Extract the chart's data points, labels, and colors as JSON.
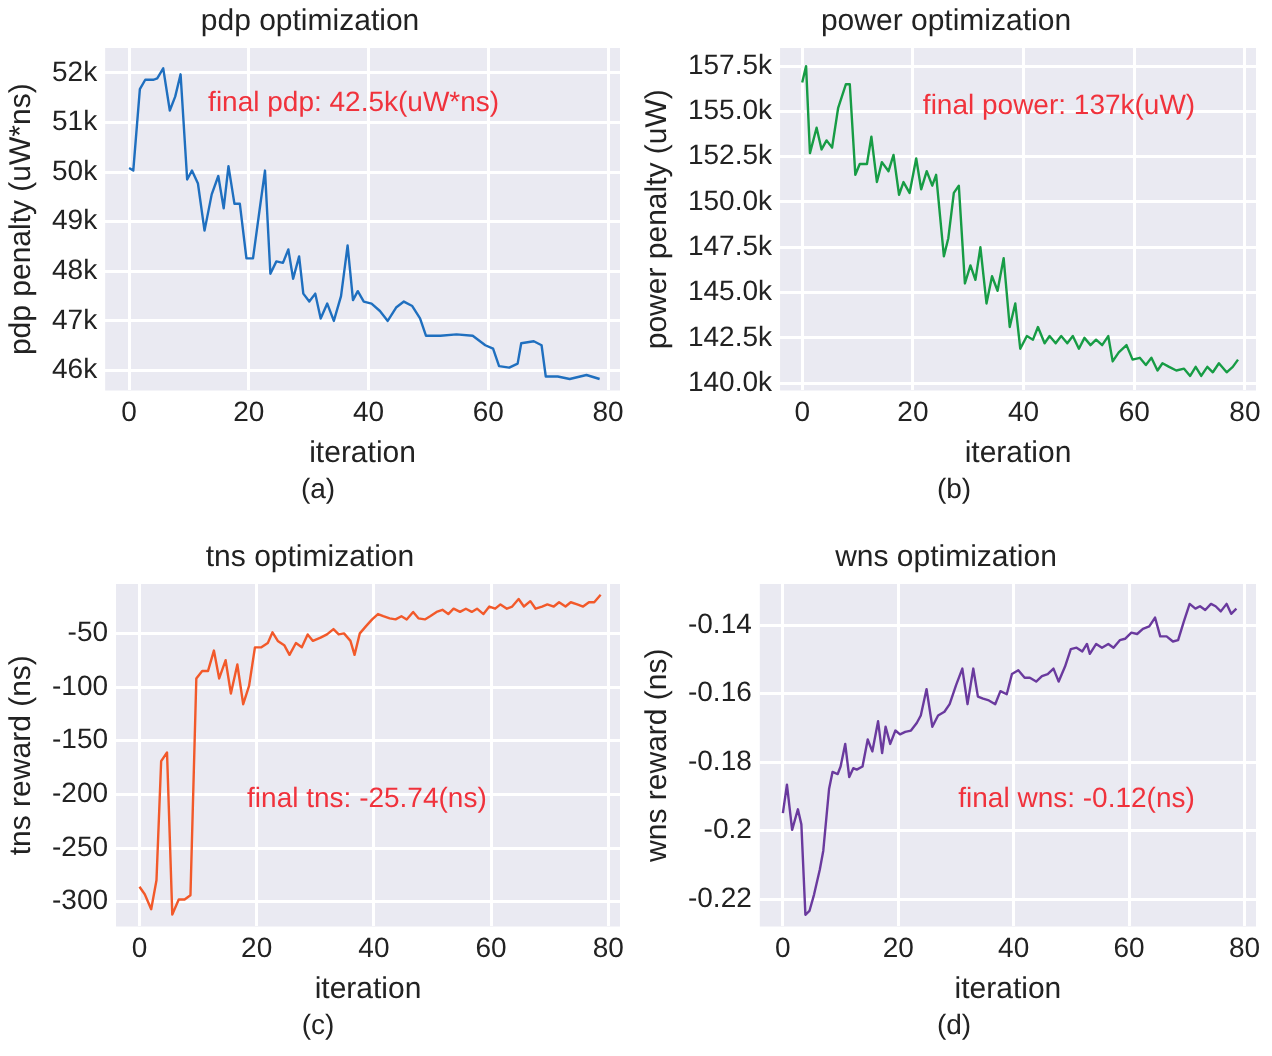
{
  "chart_data": [
    {
      "type": "line",
      "title": "pdp optimization",
      "xlabel": "iteration",
      "ylabel": "pdp penalty (uW*ns)",
      "color": "#1f6fbf",
      "grid": true,
      "xlim": [
        -4,
        82
      ],
      "xticks": [
        0,
        20,
        40,
        60,
        80
      ],
      "ylim": [
        45600,
        52500
      ],
      "yticks": [
        {
          "value": 46000,
          "label": "46k"
        },
        {
          "value": 47000,
          "label": "47k"
        },
        {
          "value": 48000,
          "label": "48k"
        },
        {
          "value": 49000,
          "label": "49k"
        },
        {
          "value": 50000,
          "label": "50k"
        },
        {
          "value": 51000,
          "label": "51k"
        },
        {
          "value": 52000,
          "label": "52k"
        }
      ],
      "annotations": [
        "final pdp: 42.5k(uW*ns)",
        "(a)"
      ],
      "x": [
        0,
        0.7,
        1.8,
        2.7,
        4.1,
        4.7,
        5.7,
        6.8,
        7.7,
        8.6,
        9.7,
        10.5,
        11.5,
        12.6,
        13.8,
        14.9,
        15.8,
        16.6,
        17.6,
        18.5,
        19.6,
        20.7,
        21.8,
        22.7,
        23.6,
        24.6,
        25.7,
        26.6,
        27.4,
        28.4,
        29.1,
        30.1,
        31.1,
        32,
        33.1,
        34.2,
        35.4,
        36.5,
        37.4,
        38.2,
        39.2,
        40.5,
        41.9,
        43.2,
        44.6,
        45.9,
        47.3,
        48.6,
        49.6,
        52,
        54.7,
        57.4,
        59.5,
        60.8,
        61.8,
        63.5,
        64.9,
        65.5,
        67.6,
        68.9,
        69.6,
        71.6,
        73.6,
        76.4,
        78.6
      ],
      "values": [
        50080,
        50030,
        51670,
        51860,
        51860,
        51890,
        52090,
        51240,
        51520,
        51970,
        49850,
        50030,
        49770,
        48820,
        49550,
        49920,
        49270,
        50120,
        49360,
        49360,
        48260,
        48260,
        49240,
        50030,
        47950,
        48200,
        48170,
        48440,
        47850,
        48300,
        47550,
        47390,
        47550,
        47050,
        47350,
        47000,
        47500,
        48520,
        47420,
        47600,
        47390,
        47350,
        47200,
        47000,
        47270,
        47390,
        47300,
        47050,
        46700,
        46700,
        46730,
        46700,
        46510,
        46440,
        46090,
        46060,
        46140,
        46550,
        46590,
        46510,
        45880,
        45880,
        45830,
        45910,
        45830
      ]
    },
    {
      "type": "line",
      "title": "power optimization",
      "xlabel": "iteration",
      "ylabel": "power penalty (uW)",
      "color": "#179c45",
      "grid": true,
      "xlim": [
        -4,
        82
      ],
      "xticks": [
        0,
        20,
        40,
        60,
        80
      ],
      "ylim": [
        139600,
        158500
      ],
      "yticks": [
        {
          "value": 140000,
          "label": "140.0k"
        },
        {
          "value": 142500,
          "label": "142.5k"
        },
        {
          "value": 145000,
          "label": "145.0k"
        },
        {
          "value": 147500,
          "label": "147.5k"
        },
        {
          "value": 150000,
          "label": "150.0k"
        },
        {
          "value": 152500,
          "label": "152.5k"
        },
        {
          "value": 155000,
          "label": "155.0k"
        },
        {
          "value": 157500,
          "label": "157.5k"
        }
      ],
      "annotations": [
        "final power: 137k(uW)",
        "(b)"
      ],
      "x": [
        0,
        0.7,
        1.4,
        2.6,
        3.5,
        4.4,
        5.4,
        6.5,
        7.9,
        8.6,
        9.6,
        10.4,
        11.7,
        12.5,
        13.5,
        14.4,
        15.6,
        16.5,
        17.5,
        18.3,
        19.4,
        20.6,
        21.5,
        22.5,
        23.5,
        24.2,
        25.6,
        26.4,
        27.4,
        28.3,
        29.4,
        30.4,
        31.3,
        32.2,
        33.3,
        34.3,
        35.3,
        36.4,
        37.5,
        38.5,
        39.4,
        40.6,
        41.7,
        42.6,
        43.8,
        44.7,
        45.8,
        46.8,
        47.9,
        48.9,
        50,
        51,
        52.1,
        53.1,
        54.2,
        55.3,
        56.1,
        57.2,
        58.6,
        59.7,
        61,
        62.1,
        63.1,
        64.2,
        65.1,
        66.3,
        67.6,
        69,
        70.1,
        71.1,
        72.1,
        73.2,
        74.2,
        75.3,
        76.7,
        77.8,
        78.75
      ],
      "values": [
        156600,
        157500,
        152700,
        154100,
        152900,
        153400,
        153000,
        155200,
        156500,
        156500,
        151500,
        152100,
        152100,
        153600,
        151100,
        152200,
        151700,
        152600,
        150400,
        151100,
        150500,
        152400,
        150700,
        151700,
        150900,
        151500,
        147000,
        148000,
        150500,
        150900,
        145500,
        146500,
        145700,
        147500,
        144400,
        145900,
        145100,
        146900,
        143100,
        144400,
        141900,
        142600,
        142400,
        143100,
        142200,
        142600,
        142200,
        142600,
        142200,
        142600,
        141900,
        142500,
        142100,
        142400,
        142100,
        142600,
        141200,
        141700,
        142100,
        141300,
        141400,
        141000,
        141400,
        140700,
        141100,
        140900,
        140700,
        140800,
        140400,
        140900,
        140400,
        140900,
        140600,
        141100,
        140600,
        140900,
        141300
      ]
    },
    {
      "type": "line",
      "title": "tns optimization",
      "xlabel": "iteration",
      "ylabel": "tns reward (ns)",
      "color": "#f2592a",
      "grid": true,
      "xlim": [
        -4,
        82
      ],
      "xticks": [
        0,
        20,
        40,
        60,
        80
      ],
      "ylim": [
        -323,
        -4
      ],
      "yticks": [
        -300,
        -250,
        -200,
        -150,
        -100,
        -50
      ],
      "annotations": [
        "final tns: -25.74(ns)",
        "(c)"
      ],
      "x": [
        0,
        0.9,
        2,
        2.9,
        3.7,
        4.7,
        5.6,
        6.7,
        7.7,
        8.7,
        9.7,
        10.7,
        11.7,
        12.7,
        13.6,
        14.7,
        15.6,
        16.7,
        17.7,
        18.7,
        19.7,
        20.8,
        21.9,
        22.7,
        23.6,
        24.7,
        25.6,
        26.7,
        27.7,
        28.7,
        29.6,
        30.9,
        32,
        33.1,
        34,
        34.9,
        36,
        36.7,
        37.6,
        38.7,
        39.7,
        40.7,
        41.6,
        42.7,
        43.7,
        44.7,
        45.6,
        46.7,
        47.6,
        48.7,
        49.6,
        50.7,
        51.7,
        52.7,
        53.6,
        54.7,
        55.7,
        56.7,
        57.6,
        58.7,
        59.7,
        60.7,
        61.6,
        62.7,
        63.6,
        64.7,
        65.6,
        66.7,
        67.6,
        68.7,
        69.6,
        70.7,
        71.6,
        72.7,
        73.6,
        74.7,
        75.7,
        76.7,
        77.6,
        78.7
      ],
      "values": [
        -286,
        -293,
        -307,
        -280,
        -169,
        -161,
        -312,
        -298,
        -298,
        -294,
        -92,
        -85,
        -85,
        -66,
        -92,
        -75,
        -106,
        -79,
        -116,
        -99,
        -63,
        -63,
        -59,
        -49,
        -57,
        -61,
        -70,
        -59,
        -63,
        -51,
        -57,
        -54,
        -51,
        -46,
        -51,
        -50,
        -57,
        -70,
        -50,
        -43,
        -37,
        -32,
        -34,
        -36,
        -37,
        -34,
        -37,
        -30,
        -36,
        -37,
        -34,
        -30,
        -28,
        -32,
        -27,
        -30,
        -27,
        -30,
        -27,
        -32,
        -25,
        -27,
        -23,
        -27,
        -25,
        -18,
        -25,
        -20,
        -27,
        -25,
        -23,
        -25,
        -21,
        -25,
        -21,
        -23,
        -25,
        -21,
        -21,
        -14
      ]
    },
    {
      "type": "line",
      "title": "wns optimization",
      "xlabel": "iteration",
      "ylabel": "wns reward (ns)",
      "color": "#6a3a9e",
      "grid": true,
      "xlim": [
        -4,
        82
      ],
      "xticks": [
        0,
        20,
        40,
        60,
        80
      ],
      "ylim": [
        -0.228,
        -0.128
      ],
      "yticks": [
        -0.22,
        -0.2,
        -0.18,
        -0.16,
        -0.14
      ],
      "annotations": [
        "final wns: -0.12(ns)",
        "(d)"
      ],
      "x": [
        0,
        0.7,
        1.6,
        2.6,
        3.2,
        3.9,
        4.6,
        5.4,
        6.4,
        7,
        8,
        8.6,
        9.5,
        10,
        10.8,
        11.5,
        12.2,
        12.8,
        13.8,
        14.7,
        15.5,
        16.5,
        17.2,
        17.8,
        18.6,
        19.5,
        20.3,
        21.2,
        22.2,
        23.2,
        23.9,
        24.9,
        25.9,
        26.9,
        28,
        28.9,
        30,
        31.1,
        32,
        33,
        33.8,
        34.7,
        35.7,
        36.8,
        37.7,
        38.8,
        39.7,
        40.8,
        41.9,
        42.8,
        43.9,
        44.9,
        45.9,
        46.9,
        47.8,
        48.9,
        49.9,
        50.9,
        51.9,
        52.7,
        53.2,
        54.3,
        55.3,
        56.4,
        57.3,
        58.4,
        59.3,
        60.4,
        61.4,
        62.4,
        63.5,
        64.5,
        65.4,
        66.5,
        67.6,
        68.5,
        69.5,
        70.5,
        71.5,
        72.3,
        73.2,
        74.2,
        75,
        75.9,
        76.9,
        77.7,
        78.6
      ],
      "values": [
        -0.1949,
        -0.1866,
        -0.1998,
        -0.1938,
        -0.1982,
        -0.2246,
        -0.2235,
        -0.2187,
        -0.2114,
        -0.2059,
        -0.1879,
        -0.1829,
        -0.1835,
        -0.1813,
        -0.1747,
        -0.1844,
        -0.1818,
        -0.1822,
        -0.1813,
        -0.1734,
        -0.1769,
        -0.1681,
        -0.1774,
        -0.1697,
        -0.1747,
        -0.1708,
        -0.1719,
        -0.1712,
        -0.1708,
        -0.1686,
        -0.1664,
        -0.1587,
        -0.1697,
        -0.1664,
        -0.1653,
        -0.1631,
        -0.1576,
        -0.1527,
        -0.1631,
        -0.1527,
        -0.1609,
        -0.1615,
        -0.162,
        -0.1631,
        -0.1593,
        -0.1602,
        -0.1543,
        -0.1532,
        -0.1554,
        -0.1554,
        -0.1565,
        -0.1549,
        -0.1543,
        -0.1527,
        -0.1565,
        -0.1521,
        -0.147,
        -0.1466,
        -0.1477,
        -0.1455,
        -0.1484,
        -0.1455,
        -0.1466,
        -0.1455,
        -0.1466,
        -0.1444,
        -0.144,
        -0.1422,
        -0.1426,
        -0.1411,
        -0.1404,
        -0.1378,
        -0.1433,
        -0.1433,
        -0.1448,
        -0.1444,
        -0.1389,
        -0.1338,
        -0.1352,
        -0.1345,
        -0.1356,
        -0.1338,
        -0.1345,
        -0.136,
        -0.1338,
        -0.1367,
        -0.1352
      ]
    }
  ]
}
